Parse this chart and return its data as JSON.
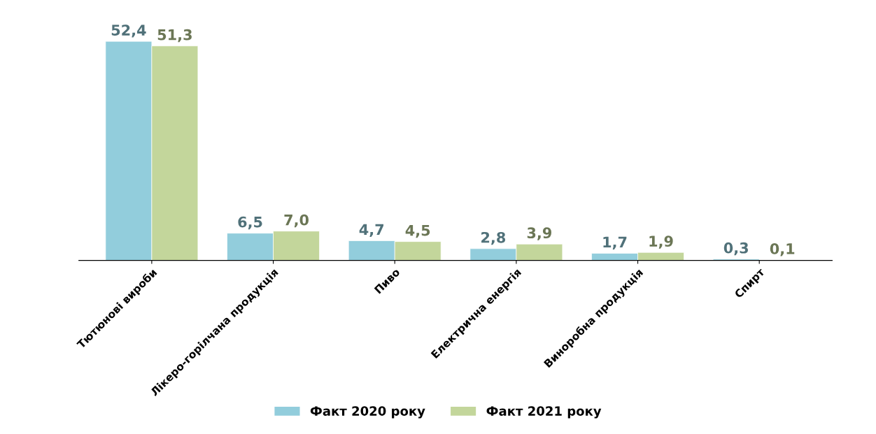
{
  "chart_data": {
    "type": "bar",
    "categories": [
      "Тютюнові вироби",
      "Лікеро-горілчана продукція",
      "Пиво",
      "Електрична енергія",
      "Виноробна продукція",
      "Спирт"
    ],
    "series": [
      {
        "name": "Факт 2020 року",
        "color": "#92cddc",
        "values": [
          52.4,
          6.5,
          4.7,
          2.8,
          1.7,
          0.3
        ],
        "value_labels": [
          "52,4",
          "6,5",
          "4,7",
          "2,8",
          "1,7",
          "0,3"
        ]
      },
      {
        "name": "Факт 2021 року",
        "color": "#c3d69b",
        "values": [
          51.3,
          7.0,
          4.5,
          3.9,
          1.9,
          0.1
        ],
        "value_labels": [
          "51,3",
          "7,0",
          "4,5",
          "3,9",
          "1,9",
          "0,1"
        ]
      }
    ],
    "legend": "bottom",
    "grid": false
  }
}
